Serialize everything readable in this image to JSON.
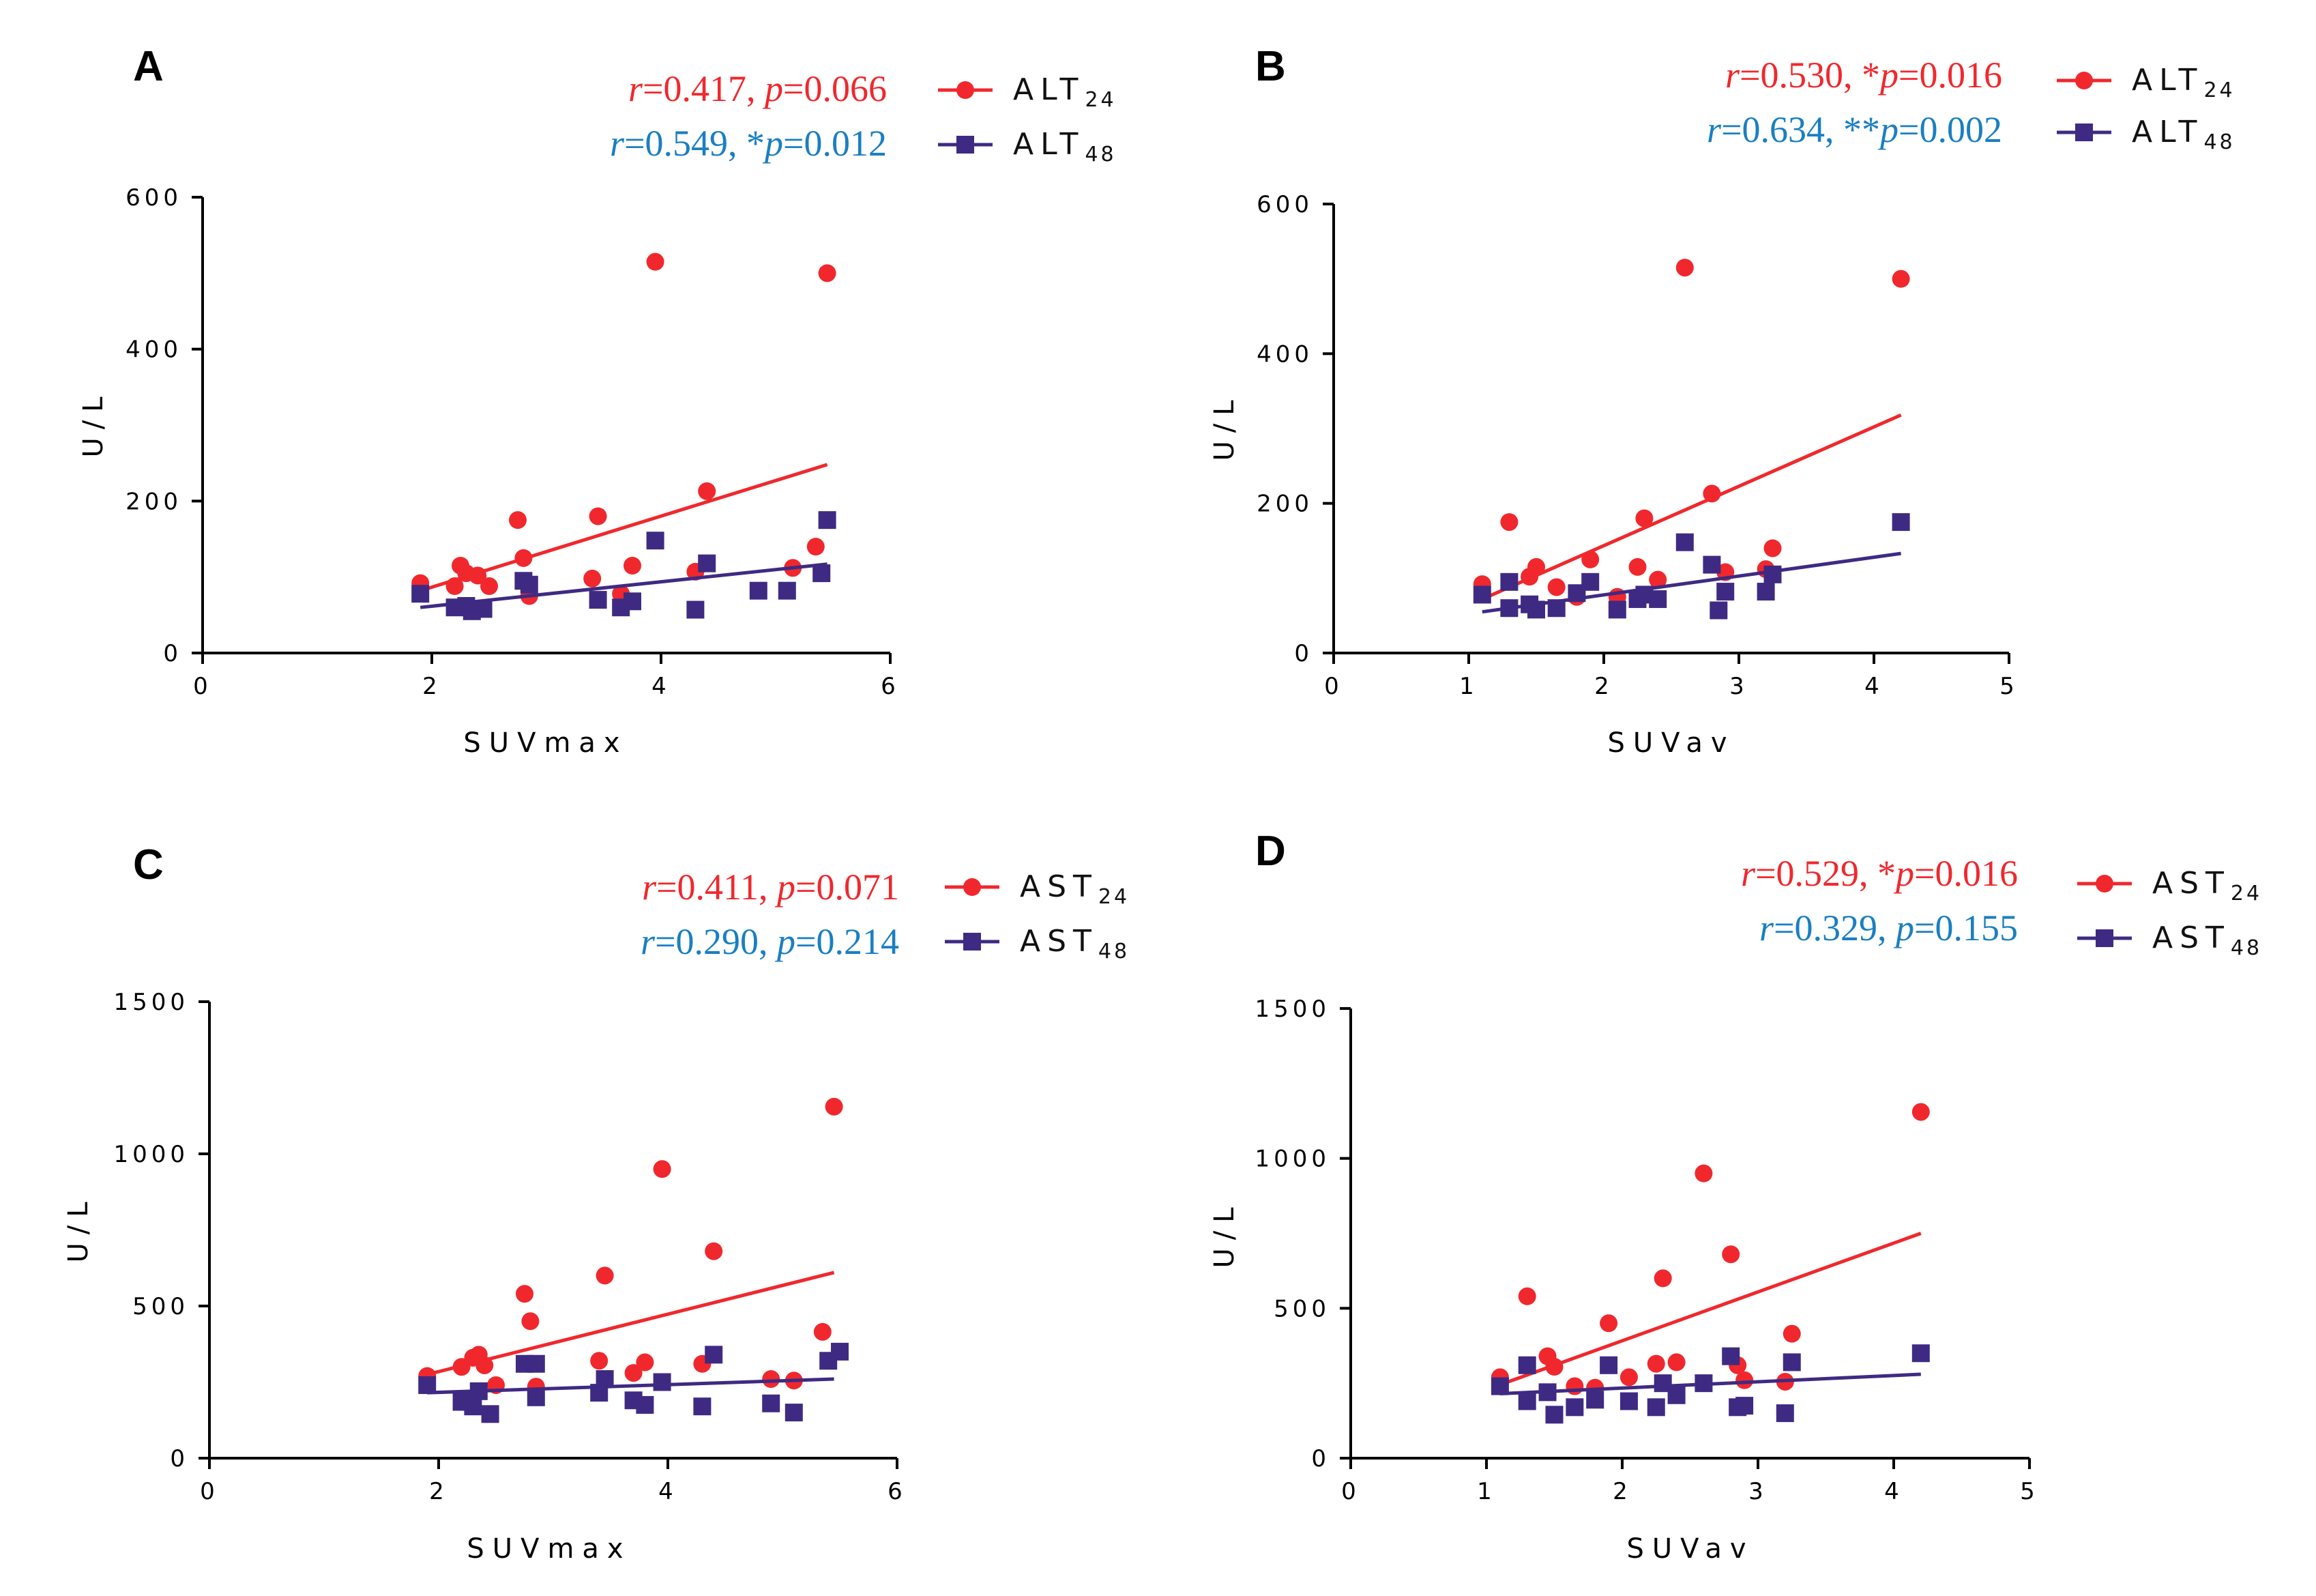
{
  "colors": {
    "series24": "#f0282d",
    "series48": "#3f2a83",
    "stat24": "#f0282d",
    "stat48": "#1a7fc1",
    "axis": "#000000"
  },
  "chart_data": [
    {
      "panel": "A",
      "type": "scatter",
      "xlabel": "SUVmax",
      "ylabel": "U/L",
      "xlim": [
        0,
        6
      ],
      "ylim": [
        0,
        600
      ],
      "xticks": [
        "0",
        "2",
        "4",
        "6"
      ],
      "yticks": [
        "0",
        "200",
        "400",
        "600"
      ],
      "stats": [
        {
          "pre": "r",
          "r": "=0.417, ",
          "star": "",
          "p": "p",
          "pv": "=0.066"
        },
        {
          "pre": "r",
          "r": "=0.549, ",
          "star": "*",
          "p": "p",
          "pv": "=0.012"
        }
      ],
      "series": [
        {
          "name": "ALT",
          "sub": "24",
          "marker": "circle",
          "points": [
            [
              1.9,
              92
            ],
            [
              2.2,
              88
            ],
            [
              2.25,
              115
            ],
            [
              2.3,
              105
            ],
            [
              2.4,
              102
            ],
            [
              2.5,
              88
            ],
            [
              2.75,
              175
            ],
            [
              2.8,
              125
            ],
            [
              2.85,
              75
            ],
            [
              3.4,
              98
            ],
            [
              3.45,
              180
            ],
            [
              3.65,
              78
            ],
            [
              3.75,
              115
            ],
            [
              3.95,
              515
            ],
            [
              4.3,
              107
            ],
            [
              4.4,
              213
            ],
            [
              5.15,
              112
            ],
            [
              5.35,
              140
            ],
            [
              5.45,
              500
            ]
          ],
          "fit": [
            [
              1.9,
              82
            ],
            [
              5.45,
              248
            ]
          ]
        },
        {
          "name": "ALT",
          "sub": "48",
          "marker": "square",
          "points": [
            [
              1.9,
              78
            ],
            [
              2.2,
              60
            ],
            [
              2.3,
              62
            ],
            [
              2.35,
              55
            ],
            [
              2.45,
              58
            ],
            [
              2.8,
              95
            ],
            [
              2.85,
              90
            ],
            [
              3.45,
              70
            ],
            [
              3.65,
              60
            ],
            [
              3.75,
              68
            ],
            [
              3.95,
              148
            ],
            [
              4.3,
              57
            ],
            [
              4.4,
              118
            ],
            [
              4.85,
              82
            ],
            [
              5.1,
              82
            ],
            [
              5.4,
              105
            ],
            [
              5.45,
              175
            ]
          ],
          "fit": [
            [
              1.9,
              60
            ],
            [
              5.45,
              117
            ]
          ]
        }
      ]
    },
    {
      "panel": "B",
      "type": "scatter",
      "xlabel": "SUVav",
      "ylabel": "U/L",
      "xlim": [
        0,
        5
      ],
      "ylim": [
        0,
        600
      ],
      "xticks": [
        "0",
        "1",
        "2",
        "3",
        "4",
        "5"
      ],
      "yticks": [
        "0",
        "200",
        "400",
        "600"
      ],
      "stats": [
        {
          "pre": "r",
          "r": "=0.530, ",
          "star": "*",
          "p": "p",
          "pv": "=0.016"
        },
        {
          "pre": "r",
          "r": "=0.634, ",
          "star": "**",
          "p": "p",
          "pv": "=0.002"
        }
      ],
      "series": [
        {
          "name": "ALT",
          "sub": "24",
          "marker": "circle",
          "points": [
            [
              1.1,
              92
            ],
            [
              1.3,
              175
            ],
            [
              1.45,
              102
            ],
            [
              1.5,
              115
            ],
            [
              1.65,
              88
            ],
            [
              1.8,
              75
            ],
            [
              1.9,
              125
            ],
            [
              2.1,
              75
            ],
            [
              2.25,
              115
            ],
            [
              2.3,
              180
            ],
            [
              2.4,
              98
            ],
            [
              2.6,
              515
            ],
            [
              2.8,
              213
            ],
            [
              2.9,
              108
            ],
            [
              3.2,
              112
            ],
            [
              3.25,
              140
            ],
            [
              4.2,
              500
            ]
          ],
          "fit": [
            [
              1.1,
              72
            ],
            [
              4.2,
              318
            ]
          ]
        },
        {
          "name": "ALT",
          "sub": "48",
          "marker": "square",
          "points": [
            [
              1.1,
              78
            ],
            [
              1.3,
              95
            ],
            [
              1.3,
              60
            ],
            [
              1.45,
              65
            ],
            [
              1.5,
              58
            ],
            [
              1.65,
              60
            ],
            [
              1.8,
              80
            ],
            [
              1.9,
              95
            ],
            [
              2.1,
              58
            ],
            [
              2.25,
              72
            ],
            [
              2.3,
              78
            ],
            [
              2.4,
              72
            ],
            [
              2.6,
              148
            ],
            [
              2.8,
              118
            ],
            [
              2.85,
              57
            ],
            [
              2.9,
              82
            ],
            [
              3.2,
              82
            ],
            [
              3.25,
              105
            ],
            [
              4.2,
              175
            ]
          ],
          "fit": [
            [
              1.1,
              55
            ],
            [
              4.2,
              133
            ]
          ]
        }
      ]
    },
    {
      "panel": "C",
      "type": "scatter",
      "xlabel": "SUVmax",
      "ylabel": "U/L",
      "xlim": [
        0,
        6
      ],
      "ylim": [
        0,
        1500
      ],
      "xticks": [
        "0",
        "2",
        "4",
        "6"
      ],
      "yticks": [
        "0",
        "500",
        "1000",
        "1500"
      ],
      "stats": [
        {
          "pre": "r",
          "r": "=0.411, ",
          "star": "",
          "p": "p",
          "pv": "=0.071"
        },
        {
          "pre": "r",
          "r": "=0.290, ",
          "star": "",
          "p": "p",
          "pv": "=0.214"
        }
      ],
      "series": [
        {
          "name": "AST",
          "sub": "24",
          "marker": "circle",
          "points": [
            [
              1.9,
              270
            ],
            [
              2.2,
              300
            ],
            [
              2.3,
              330
            ],
            [
              2.35,
              340
            ],
            [
              2.4,
              305
            ],
            [
              2.5,
              240
            ],
            [
              2.75,
              540
            ],
            [
              2.8,
              450
            ],
            [
              2.85,
              235
            ],
            [
              3.4,
              320
            ],
            [
              3.45,
              600
            ],
            [
              3.7,
              280
            ],
            [
              3.8,
              315
            ],
            [
              3.95,
              950
            ],
            [
              4.3,
              310
            ],
            [
              4.4,
              680
            ],
            [
              4.9,
              260
            ],
            [
              5.1,
              255
            ],
            [
              5.35,
              415
            ],
            [
              5.45,
              1155
            ]
          ],
          "fit": [
            [
              1.9,
              275
            ],
            [
              5.45,
              610
            ]
          ]
        },
        {
          "name": "AST",
          "sub": "48",
          "marker": "square",
          "points": [
            [
              1.9,
              240
            ],
            [
              2.2,
              185
            ],
            [
              2.3,
              170
            ],
            [
              2.35,
              220
            ],
            [
              2.45,
              145
            ],
            [
              2.75,
              310
            ],
            [
              2.85,
              310
            ],
            [
              2.85,
              200
            ],
            [
              3.4,
              215
            ],
            [
              3.45,
              260
            ],
            [
              3.7,
              190
            ],
            [
              3.8,
              175
            ],
            [
              3.95,
              250
            ],
            [
              4.3,
              170
            ],
            [
              4.4,
              340
            ],
            [
              4.9,
              180
            ],
            [
              5.1,
              150
            ],
            [
              5.4,
              320
            ],
            [
              5.5,
              350
            ]
          ],
          "fit": [
            [
              1.9,
              215
            ],
            [
              5.45,
              260
            ]
          ]
        }
      ]
    },
    {
      "panel": "D",
      "type": "scatter",
      "xlabel": "SUVav",
      "ylabel": "U/L",
      "xlim": [
        0,
        5
      ],
      "ylim": [
        0,
        1500
      ],
      "xticks": [
        "0",
        "1",
        "2",
        "3",
        "4",
        "5"
      ],
      "yticks": [
        "0",
        "500",
        "1000",
        "1500"
      ],
      "stats": [
        {
          "pre": "r",
          "r": "=0.529, ",
          "star": "*",
          "p": "p",
          "pv": "=0.016"
        },
        {
          "pre": "r",
          "r": "=0.329, ",
          "star": "",
          "p": "p",
          "pv": "=0.155"
        }
      ],
      "series": [
        {
          "name": "AST",
          "sub": "24",
          "marker": "circle",
          "points": [
            [
              1.1,
              270
            ],
            [
              1.3,
              540
            ],
            [
              1.45,
              340
            ],
            [
              1.5,
              305
            ],
            [
              1.65,
              240
            ],
            [
              1.8,
              235
            ],
            [
              1.9,
              450
            ],
            [
              2.05,
              270
            ],
            [
              2.25,
              315
            ],
            [
              2.3,
              600
            ],
            [
              2.4,
              320
            ],
            [
              2.6,
              950
            ],
            [
              2.8,
              680
            ],
            [
              2.85,
              310
            ],
            [
              2.9,
              260
            ],
            [
              3.2,
              255
            ],
            [
              3.25,
              415
            ],
            [
              4.2,
              1155
            ]
          ],
          "fit": [
            [
              1.1,
              245
            ],
            [
              4.2,
              750
            ]
          ]
        },
        {
          "name": "AST",
          "sub": "48",
          "marker": "square",
          "points": [
            [
              1.1,
              240
            ],
            [
              1.3,
              310
            ],
            [
              1.3,
              190
            ],
            [
              1.45,
              220
            ],
            [
              1.5,
              145
            ],
            [
              1.65,
              170
            ],
            [
              1.8,
              195
            ],
            [
              1.9,
              310
            ],
            [
              2.05,
              190
            ],
            [
              2.25,
              170
            ],
            [
              2.3,
              250
            ],
            [
              2.4,
              210
            ],
            [
              2.6,
              250
            ],
            [
              2.8,
              340
            ],
            [
              2.85,
              170
            ],
            [
              2.9,
              175
            ],
            [
              3.2,
              150
            ],
            [
              3.25,
              320
            ],
            [
              4.2,
              350
            ]
          ],
          "fit": [
            [
              1.1,
              215
            ],
            [
              4.2,
              280
            ]
          ]
        }
      ]
    }
  ]
}
